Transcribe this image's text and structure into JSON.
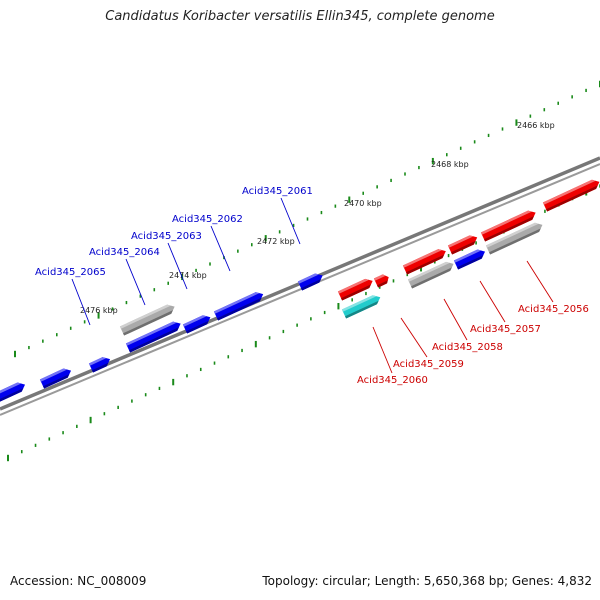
{
  "title": "Candidatus Koribacter versatilis Ellin345, complete genome",
  "accession": "Accession: NC_008009",
  "summary": "Topology: circular; Length: 5,650,368 bp; Genes: 4,832",
  "scale_labels": [
    "2466 kbp",
    "2468 kbp",
    "2470 kbp",
    "2472 kbp",
    "2474 kbp",
    "2476 kbp"
  ],
  "genes_top": [
    "Acid345_2061",
    "Acid345_2062",
    "Acid345_2063",
    "Acid345_2064",
    "Acid345_2065"
  ],
  "genes_bottom": [
    "Acid345_2056",
    "Acid345_2057",
    "Acid345_2058",
    "Acid345_2059",
    "Acid345_2060"
  ],
  "colors": {
    "forward_gene": "#0000ee",
    "reverse_gene": "#ee0000",
    "other_gene": "#aaaaaa",
    "rna_gene": "#22cccc",
    "backbone": "#777777",
    "ticks": "#1a8a1a",
    "top_label": "#0000cc",
    "bottom_label": "#cc0000"
  }
}
